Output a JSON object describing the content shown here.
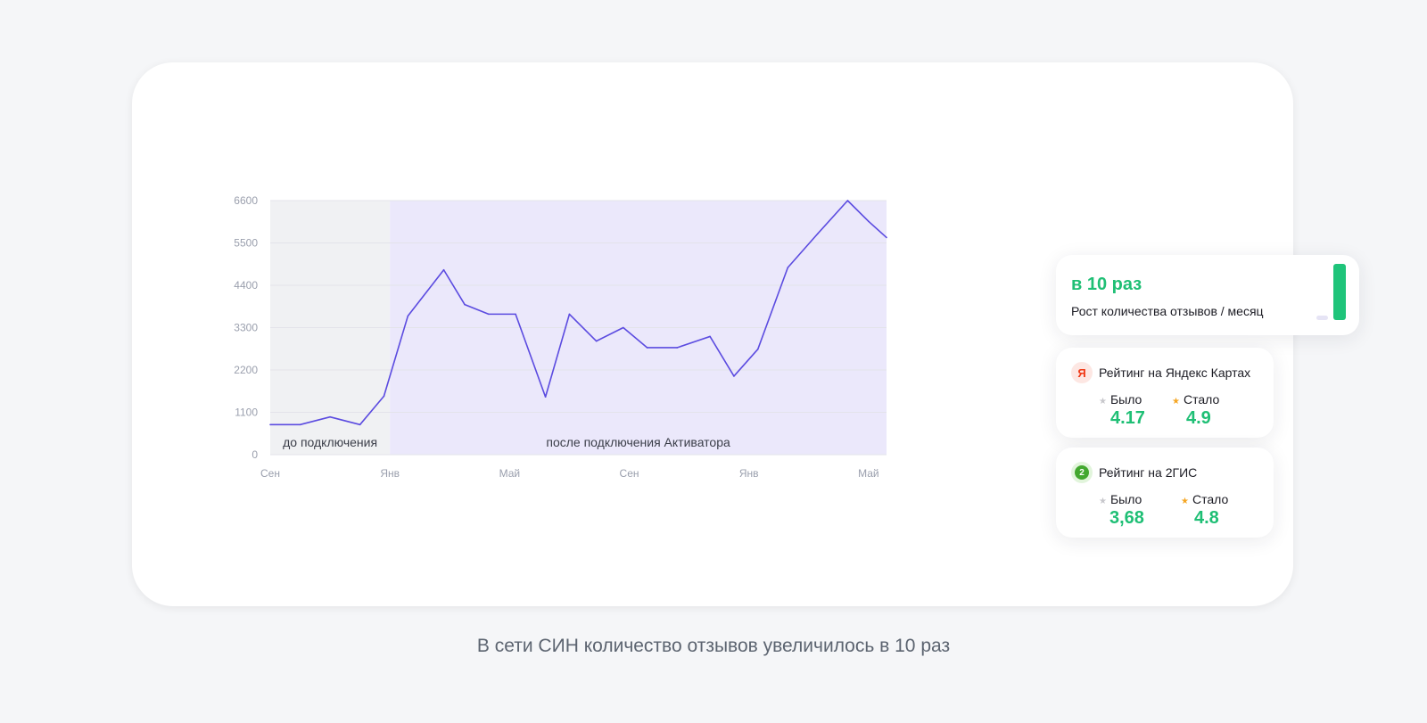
{
  "chart_data": {
    "type": "line",
    "ylim": [
      0,
      6600
    ],
    "y_ticks": [
      "0",
      "1100",
      "2200",
      "3300",
      "4400",
      "5500",
      "6600"
    ],
    "x_ticks": [
      "Сен",
      "Янв",
      "Май",
      "Сен",
      "Янв",
      "Май"
    ],
    "x_tick_positions": [
      0,
      4,
      8,
      12,
      16,
      20
    ],
    "grid": true,
    "series_color": "#5b4be0",
    "regions": [
      {
        "label": "до подключения",
        "from": 0,
        "to": 4,
        "color": "#f0f1f3"
      },
      {
        "label": "после подключения Активатора",
        "from": 4,
        "to": 20.6,
        "color": "#ebe8fb"
      }
    ],
    "series": [
      {
        "x": [
          0,
          1,
          2,
          3,
          3.8,
          4.6,
          5.8,
          6.5,
          7.3,
          8.2,
          9.2,
          10,
          10.9,
          11.8,
          12.6,
          13.6,
          14.7,
          15.5,
          16.3,
          17.3,
          18.3,
          19.3,
          20.0,
          20.6
        ],
        "values": [
          780,
          780,
          980,
          780,
          1520,
          3600,
          4800,
          3900,
          3650,
          3650,
          1500,
          3650,
          2950,
          3300,
          2780,
          2780,
          3070,
          2040,
          2740,
          4860,
          5740,
          6600,
          6060,
          5640
        ]
      }
    ]
  },
  "growth_card": {
    "title": "в 10 раз",
    "subtitle": "Рост количества отзывов / месяц"
  },
  "yandex_card": {
    "icon": "yandex-icon",
    "logo_letter": "Я",
    "title": "Рейтинг на Яндекс Картах",
    "was_label": "Было",
    "was_value": "4.17",
    "now_label": "Стало",
    "now_value": "4.9"
  },
  "gis_card": {
    "icon": "2gis-icon",
    "logo_letter": "2",
    "title": "Рейтинг на 2ГИС",
    "was_label": "Было",
    "was_value": "3,68",
    "now_label": "Стало",
    "now_value": "4.8"
  },
  "colors": {
    "accent_green": "#1fbf75",
    "line": "#5b4be0",
    "star_gold": "#f5a623"
  },
  "caption": "В сети СИН количество отзывов увеличилось в 10 раз"
}
